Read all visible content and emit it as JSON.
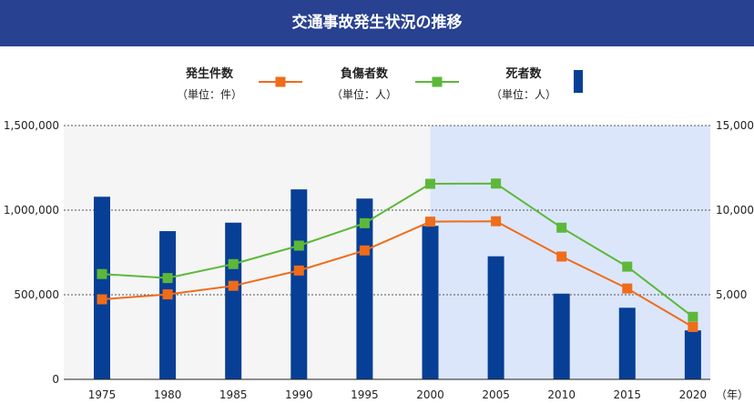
{
  "title": "交通事故発生状況の推移",
  "chart_data": {
    "type": "bar+line",
    "categories": [
      "1975",
      "1980",
      "1985",
      "1990",
      "1995",
      "2000",
      "2005",
      "2010",
      "2015",
      "2020"
    ],
    "x_unit": "（年）",
    "left_axis": {
      "ylim": [
        0,
        1500000
      ],
      "ticks": [
        "0",
        "500,000",
        "1,000,000",
        "1,500,000"
      ]
    },
    "right_axis": {
      "ylim": [
        0,
        15000
      ],
      "ticks": [
        "5,000",
        "10,000",
        "15,000"
      ]
    },
    "series": [
      {
        "name": "発生件数",
        "unit": "（単位：件）",
        "type": "line",
        "axis": "left",
        "color": "#ef6c1a",
        "values": [
          472938,
          502261,
          552788,
          643097,
          761794,
          931950,
          934346,
          725924,
          536899,
          309178
        ]
      },
      {
        "name": "負傷者数",
        "unit": "（単位：人）",
        "type": "line",
        "axis": "left",
        "color": "#5db83a",
        "values": [
          622467,
          598719,
          681346,
          790295,
          922677,
          1155707,
          1157113,
          896297,
          666023,
          369476
        ]
      },
      {
        "name": "死者数",
        "unit": "（単位：人）",
        "type": "bar",
        "axis": "right",
        "color": "#073f96",
        "values": [
          10792,
          8760,
          9261,
          11227,
          10684,
          9073,
          7272,
          5065,
          4231,
          2893
        ]
      }
    ],
    "shaded_regions": [
      {
        "from": "1975",
        "to": "2000",
        "color": "#f5f5f5"
      },
      {
        "from": "2000",
        "to": "2020",
        "color": "#dbe6fb"
      }
    ],
    "grid": true,
    "legend_position": "top"
  }
}
